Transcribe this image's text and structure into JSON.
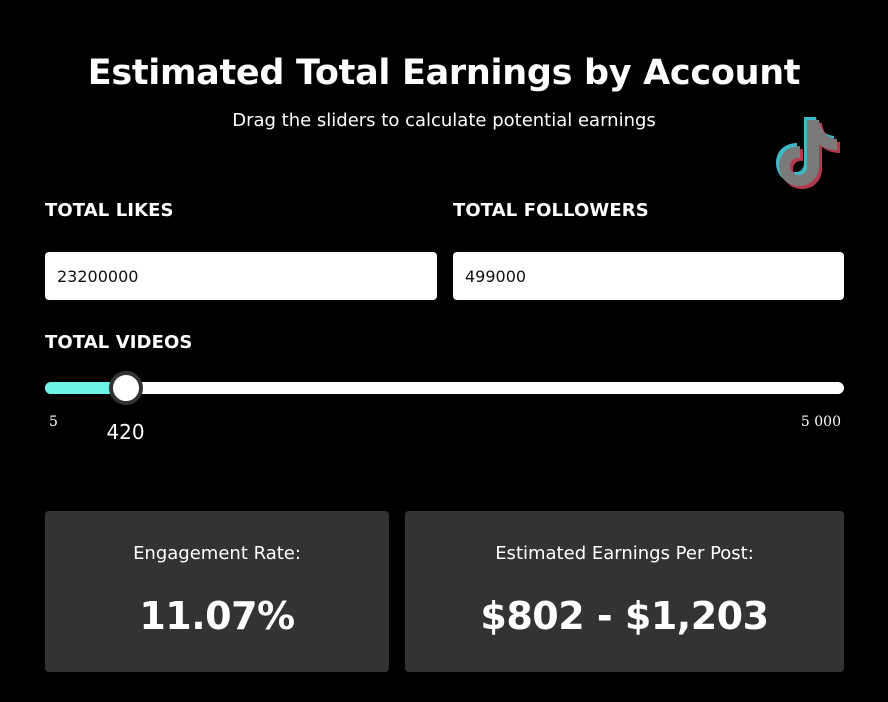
{
  "header": {
    "title": "Estimated Total Earnings by Account",
    "subtitle": "Drag the sliders to calculate potential earnings",
    "logo_icon": "tiktok-logo-icon"
  },
  "inputs": {
    "likes": {
      "label": "TOTAL LIKES",
      "value": "23200000"
    },
    "followers": {
      "label": "TOTAL FOLLOWERS",
      "value": "499000"
    }
  },
  "videos_slider": {
    "label": "TOTAL VIDEOS",
    "min": 5,
    "max": 5000,
    "min_label": "5",
    "max_label": "5 000",
    "value": 420,
    "value_label": "420",
    "fill_color": "#6ff2e8"
  },
  "results": {
    "engagement": {
      "label": "Engagement Rate:",
      "value": "11.07%"
    },
    "earnings": {
      "label": "Estimated Earnings Per Post:",
      "value": "$802 - $1,203"
    }
  },
  "colors": {
    "background": "#000000",
    "card": "#333333",
    "accent": "#6ff2e8"
  }
}
